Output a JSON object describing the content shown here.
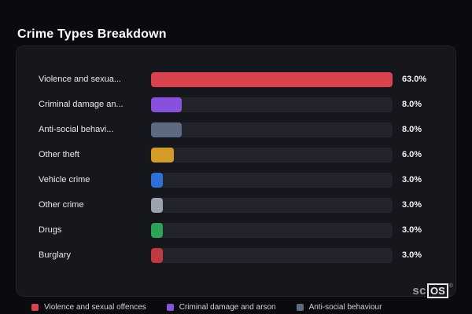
{
  "header": {
    "title": "Crime Types Breakdown"
  },
  "chart_data": {
    "type": "bar",
    "orientation": "horizontal",
    "title": "Crime Types Breakdown",
    "categories": [
      "Violence and sexua...",
      "Criminal damage an...",
      "Anti-social behavi...",
      "Other theft",
      "Vehicle crime",
      "Other crime",
      "Drugs",
      "Burglary"
    ],
    "values": [
      63.0,
      8.0,
      8.0,
      6.0,
      3.0,
      3.0,
      3.0,
      3.0
    ],
    "value_labels": [
      "63.0%",
      "8.0%",
      "8.0%",
      "6.0%",
      "3.0%",
      "3.0%",
      "3.0%",
      "3.0%"
    ],
    "colors": [
      "#d8434e",
      "#8950dc",
      "#5d6b80",
      "#d39c27",
      "#2f6fd8",
      "#9ba3b0",
      "#2ba457",
      "#c23a40"
    ],
    "xlim": [
      0,
      63
    ],
    "grid": false,
    "legend_position": "bottom",
    "track_color": "#23232c"
  },
  "legend": {
    "items": [
      {
        "label": "Violence and sexual offences",
        "color": "#d8434e"
      },
      {
        "label": "Criminal damage and arson",
        "color": "#8950dc"
      },
      {
        "label": "Anti-social behaviour",
        "color": "#5d6b80"
      }
    ]
  },
  "branding": {
    "prefix": "sc",
    "boxed": "OS",
    "registered": "®"
  },
  "theme": {
    "page_bg": "#0a0a0f",
    "card_bg": "#16161d"
  }
}
